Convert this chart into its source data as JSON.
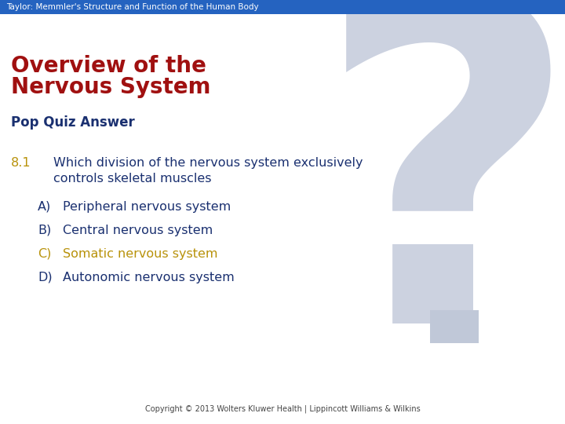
{
  "header_text": "Taylor: Memmler's Structure and Function of the Human Body",
  "header_bg": "#2563c0",
  "header_text_color": "#ffffff",
  "bg_color": "#ffffff",
  "title_line1": "Overview of the",
  "title_line2": "Nervous System",
  "title_color": "#a01010",
  "subtitle": "Pop Quiz Answer",
  "subtitle_color": "#1a3070",
  "question_num": "8.1",
  "question_num_color": "#b8920a",
  "question_text1": "Which division of the nervous system exclusively",
  "question_text2": "controls skeletal muscles",
  "question_color": "#1a3070",
  "options": [
    {
      "label": "A)",
      "text": "Peripheral nervous system",
      "color": "#1a3070"
    },
    {
      "label": "B)",
      "text": "Central nervous system",
      "color": "#1a3070"
    },
    {
      "label": "C)",
      "text": "Somatic nervous system",
      "color": "#b8920a"
    },
    {
      "label": "D)",
      "text": "Autonomic nervous system",
      "color": "#1a3070"
    }
  ],
  "copyright": "Copyright © 2013 Wolters Kluwer Health | Lippincott Williams & Wilkins",
  "question_mark_color": "#ccd2e0",
  "answer_box_color": "#c0c8d8"
}
